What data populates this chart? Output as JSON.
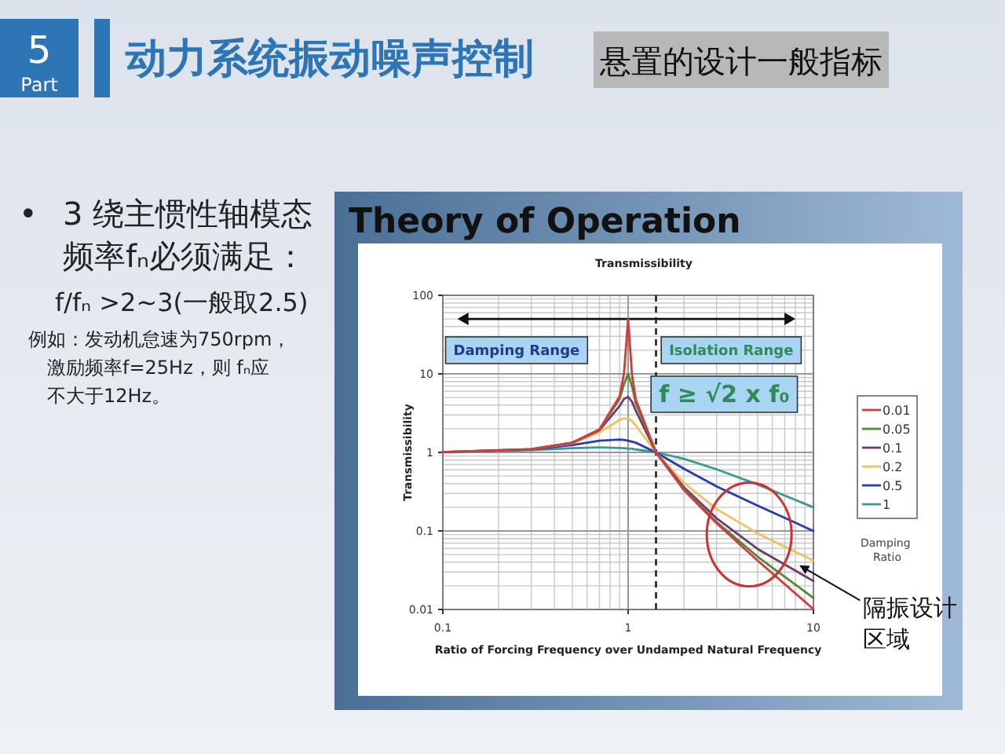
{
  "chart_data": {
    "type": "line",
    "title": "Transmissibility",
    "xlabel": "Ratio of Forcing Frequency over Undamped Natural Frequency",
    "ylabel": "Transmissibility",
    "legend_title": "Damping Ratio",
    "legend": "right",
    "log": "xy",
    "grid": true,
    "xlim": [
      0.1,
      10
    ],
    "ylim": [
      0.01,
      100
    ],
    "xticks": [
      0.1,
      1,
      10
    ],
    "yticks": [
      0.01,
      0.1,
      1,
      10,
      100
    ],
    "x": [
      0.1,
      0.3,
      0.5,
      0.7,
      0.9,
      0.95,
      1,
      1.05,
      1.1,
      1.414,
      2,
      3,
      5,
      10
    ],
    "series": [
      {
        "name": "0.01",
        "color": "#d23c3c",
        "values": [
          1.01,
          1.1,
          1.33,
          1.96,
          5.2,
          10.1,
          50,
          9.6,
          4.7,
          1,
          0.33,
          0.125,
          0.042,
          0.0101
        ]
      },
      {
        "name": "0.05",
        "color": "#4f8a3c",
        "values": [
          null,
          null,
          1.33,
          1.95,
          4.8,
          7.4,
          10,
          6.9,
          4.2,
          1,
          0.34,
          0.13,
          0.047,
          0.014
        ]
      },
      {
        "name": "0.1",
        "color": "#6e3a6e",
        "values": [
          1.01,
          1.1,
          1.33,
          1.91,
          3.9,
          4.8,
          5.1,
          4.4,
          3.4,
          1,
          0.36,
          0.145,
          0.059,
          0.023
        ]
      },
      {
        "name": "0.2",
        "color": "#f0c060",
        "values": [
          1.01,
          1.1,
          1.31,
          1.79,
          2.6,
          2.7,
          2.7,
          2.5,
          2.2,
          1,
          0.41,
          0.19,
          0.093,
          0.042
        ]
      },
      {
        "name": "0.5",
        "color": "#2a3ab0",
        "values": [
          1.01,
          1.09,
          1.24,
          1.41,
          1.46,
          1.44,
          1.41,
          1.37,
          1.33,
          1,
          0.62,
          0.37,
          0.21,
          0.1
        ]
      },
      {
        "name": "1",
        "color": "#3a9a90",
        "values": [
          1.01,
          1.07,
          1.13,
          1.16,
          1.14,
          1.13,
          1.12,
          1.11,
          1.09,
          1,
          0.83,
          0.61,
          0.39,
          0.2
        ]
      }
    ],
    "ref_lines": [
      {
        "axis": "x",
        "value": 1.414,
        "color": "#222222",
        "line_style": "dashed"
      }
    ],
    "annotations": [
      "5",
      "Part",
      "动力系统振动噪声控制",
      "悬置的设计一般指标",
      "•",
      "3 绕主惯性轴模态频率fₙ必须满足：",
      "f/fₙ >2~3(一般取2.5)",
      "例如：发动机怠速为750rpm，激励频率f=25Hz，则 fₙ应不大于12Hz。",
      "Theory of Operation",
      "Damping Range",
      "Isolation Range",
      "f ≥ √2 x f₀",
      {
        "text": "隔振设计区域",
        "x": 8.5,
        "y": 0.036
      }
    ]
  }
}
